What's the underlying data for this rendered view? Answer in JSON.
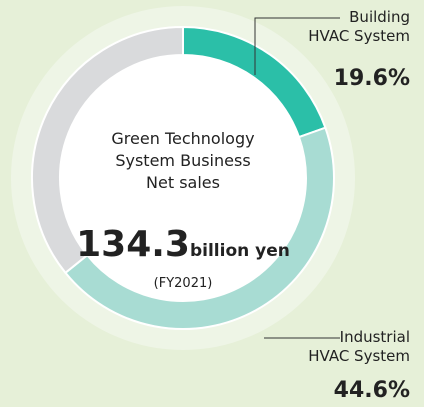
{
  "chart_data": {
    "type": "donut",
    "categories": [
      "Building\nHVAC System",
      "Industrial\nHVAC System",
      null
    ],
    "values": [
      19.6,
      44.6,
      35.8
    ],
    "value_labels": [
      "19.6%",
      "44.6%",
      null
    ],
    "colors": [
      "#2bbfa8",
      "#a8dcd3",
      "#d9dadc"
    ],
    "center_text": "Green Technology\nSystem Business\nNet sales",
    "total": "134.3",
    "total_unit": "billion yen",
    "note": "(FY2021)"
  }
}
